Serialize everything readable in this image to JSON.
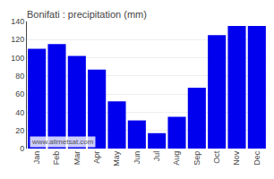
{
  "chart_data": {
    "type": "bar",
    "title": "Bonifati : precipitation (mm)",
    "categories": [
      "Jan",
      "Feb",
      "Mar",
      "Apr",
      "May",
      "Jun",
      "Jul",
      "Aug",
      "Sep",
      "Oct",
      "Nov",
      "Dec"
    ],
    "values": [
      110,
      115,
      102,
      87,
      52,
      31,
      17,
      35,
      67,
      125,
      135,
      135
    ],
    "color": "#0000ee",
    "ylim": [
      0,
      140
    ],
    "yticks": [
      0,
      20,
      40,
      60,
      80,
      100,
      120,
      140
    ],
    "grid": true,
    "annotations": [
      "www.allmetsat.com"
    ]
  }
}
